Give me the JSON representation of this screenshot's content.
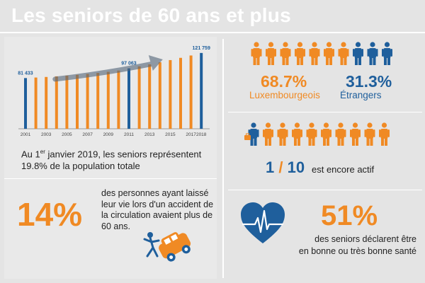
{
  "title": "Les seniors de 60 ans et plus",
  "colors": {
    "orange": "#f08a24",
    "blue": "#1f5f9c",
    "background": "#e4e4e4"
  },
  "chart_data": {
    "type": "bar",
    "categories": [
      "2001",
      "2002",
      "2003",
      "2004",
      "2005",
      "2006",
      "2007",
      "2008",
      "2009",
      "2010",
      "2011",
      "2012",
      "2013",
      "2014",
      "2015",
      "2016",
      "2017",
      "2018"
    ],
    "x_tick_labels": [
      "2001",
      "2003",
      "2005",
      "2007",
      "2009",
      "2011",
      "2013",
      "2015",
      "2017",
      "2018"
    ],
    "values": [
      81433,
      82300,
      83200,
      84200,
      85400,
      86700,
      88100,
      89700,
      91500,
      93500,
      97063,
      100200,
      103400,
      106800,
      110300,
      113900,
      117700,
      121759
    ],
    "highlighted_categories": [
      "2001",
      "2011",
      "2018"
    ],
    "data_labels": {
      "2001": "81 433",
      "2011": "97 063",
      "2018": "121 759"
    },
    "bar_colors": {
      "default": "#f08a24",
      "highlight": "#1f5f9c"
    },
    "trend_arrow": true,
    "ylim": [
      0,
      125000
    ],
    "grid": false
  },
  "population": {
    "prefix": "Au 1",
    "sup": "er",
    "suffix": " janvier 2019, les seniors représentent",
    "line2": "19.8% de la population totale"
  },
  "accident": {
    "percent": "14%",
    "text": "des personnes ayant laissé leur vie lors d'un accident de la circulation avaient plus de 60 ans.",
    "icon": "car-accident-icon"
  },
  "nationality": {
    "luxembourgeois_pct": "68.7%",
    "luxembourgeois_label": "Luxembourgeois",
    "etrangers_pct": "31.3%",
    "etrangers_label": "Étrangers",
    "orange_people": 7,
    "blue_people": 3,
    "icon": "person-icon"
  },
  "activity": {
    "ratio_num": "1",
    "ratio_sep": "/",
    "ratio_den": "10",
    "text": "est encore actif",
    "active_people": 1,
    "total_people": 10,
    "icon": "briefcase-person-icon"
  },
  "health": {
    "percent": "51%",
    "line1": "des seniors déclarent être",
    "line2": "en bonne ou très bonne santé",
    "icon": "heart-icon"
  }
}
